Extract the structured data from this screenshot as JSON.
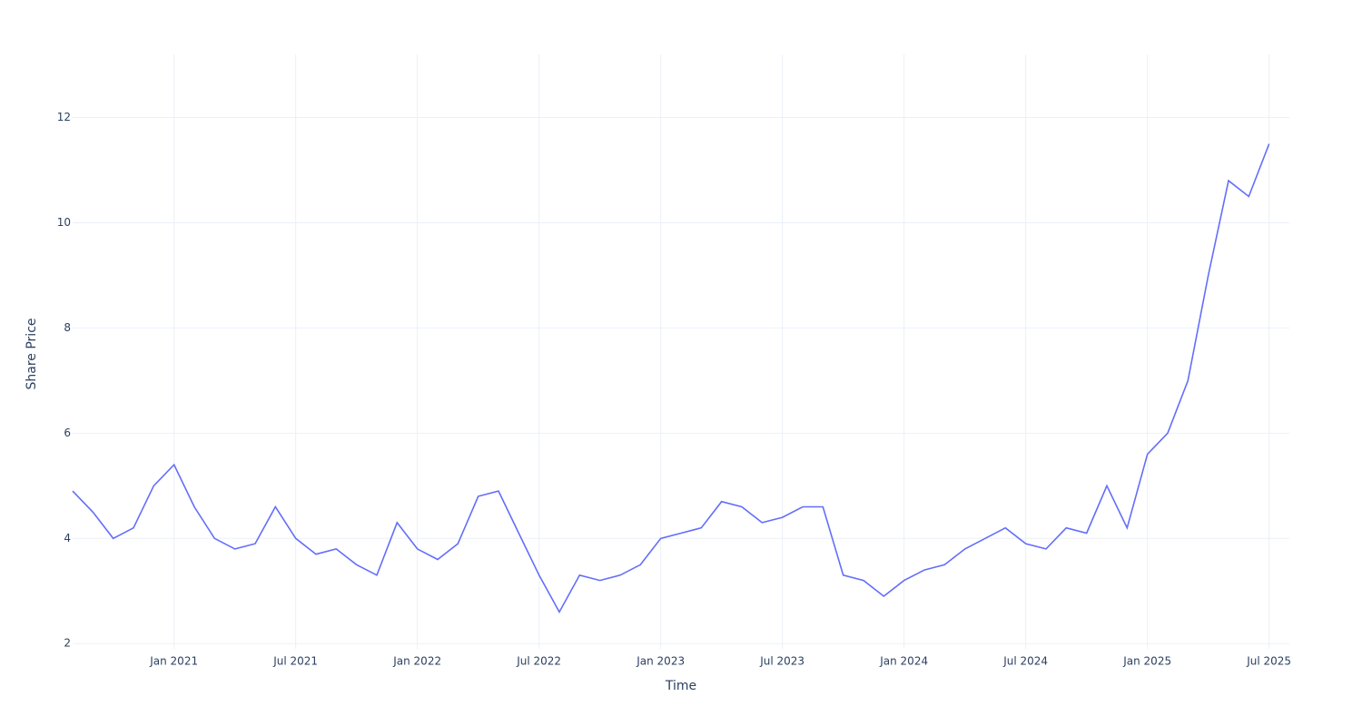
{
  "chart_data": {
    "type": "line",
    "x_label": "Time",
    "y_label": "Share Price",
    "x": [
      "2020-08",
      "2020-09",
      "2020-10",
      "2020-11",
      "2020-12",
      "2021-01",
      "2021-02",
      "2021-03",
      "2021-04",
      "2021-05",
      "2021-06",
      "2021-07",
      "2021-08",
      "2021-09",
      "2021-10",
      "2021-11",
      "2021-12",
      "2022-01",
      "2022-02",
      "2022-03",
      "2022-04",
      "2022-05",
      "2022-06",
      "2022-07",
      "2022-08",
      "2022-09",
      "2022-10",
      "2022-11",
      "2022-12",
      "2023-01",
      "2023-02",
      "2023-03",
      "2023-04",
      "2023-05",
      "2023-06",
      "2023-07",
      "2023-08",
      "2023-09",
      "2023-10",
      "2023-11",
      "2023-12",
      "2024-01",
      "2024-02",
      "2024-03",
      "2024-04",
      "2024-05",
      "2024-06",
      "2024-07",
      "2024-08",
      "2024-09",
      "2024-10",
      "2024-11",
      "2024-12",
      "2025-01",
      "2025-02",
      "2025-03",
      "2025-04",
      "2025-05",
      "2025-06",
      "2025-07"
    ],
    "series": [
      {
        "name": "Share Price",
        "color": "#636efa",
        "values": [
          4.9,
          4.5,
          4.0,
          4.2,
          5.0,
          5.4,
          4.6,
          4.0,
          3.8,
          3.9,
          4.6,
          4.0,
          3.7,
          3.8,
          3.5,
          3.3,
          4.3,
          3.8,
          3.6,
          3.9,
          4.8,
          4.9,
          4.1,
          3.3,
          2.6,
          3.3,
          3.2,
          3.3,
          3.5,
          4.0,
          4.1,
          4.2,
          4.7,
          4.6,
          4.3,
          4.4,
          4.6,
          4.6,
          3.3,
          3.2,
          2.9,
          3.2,
          3.4,
          3.5,
          3.8,
          4.0,
          4.2,
          3.9,
          3.8,
          4.2,
          4.1,
          5.0,
          4.2,
          5.6,
          6.0,
          7.0,
          9.0,
          10.8,
          10.5,
          11.5
        ]
      }
    ],
    "xlim": [
      "2020-08",
      "2025-08"
    ],
    "xticks": [
      {
        "value": "2021-01",
        "label": "Jan 2021"
      },
      {
        "value": "2021-07",
        "label": "Jul 2021"
      },
      {
        "value": "2022-01",
        "label": "Jan 2022"
      },
      {
        "value": "2022-07",
        "label": "Jul 2022"
      },
      {
        "value": "2023-01",
        "label": "Jan 2023"
      },
      {
        "value": "2023-07",
        "label": "Jul 2023"
      },
      {
        "value": "2024-01",
        "label": "Jan 2024"
      },
      {
        "value": "2024-07",
        "label": "Jul 2024"
      },
      {
        "value": "2025-01",
        "label": "Jan 2025"
      },
      {
        "value": "2025-07",
        "label": "Jul 2025"
      }
    ],
    "ylim": [
      1.9,
      13.2
    ],
    "yticks": [
      2,
      4,
      6,
      8,
      10,
      12
    ],
    "grid": true
  }
}
